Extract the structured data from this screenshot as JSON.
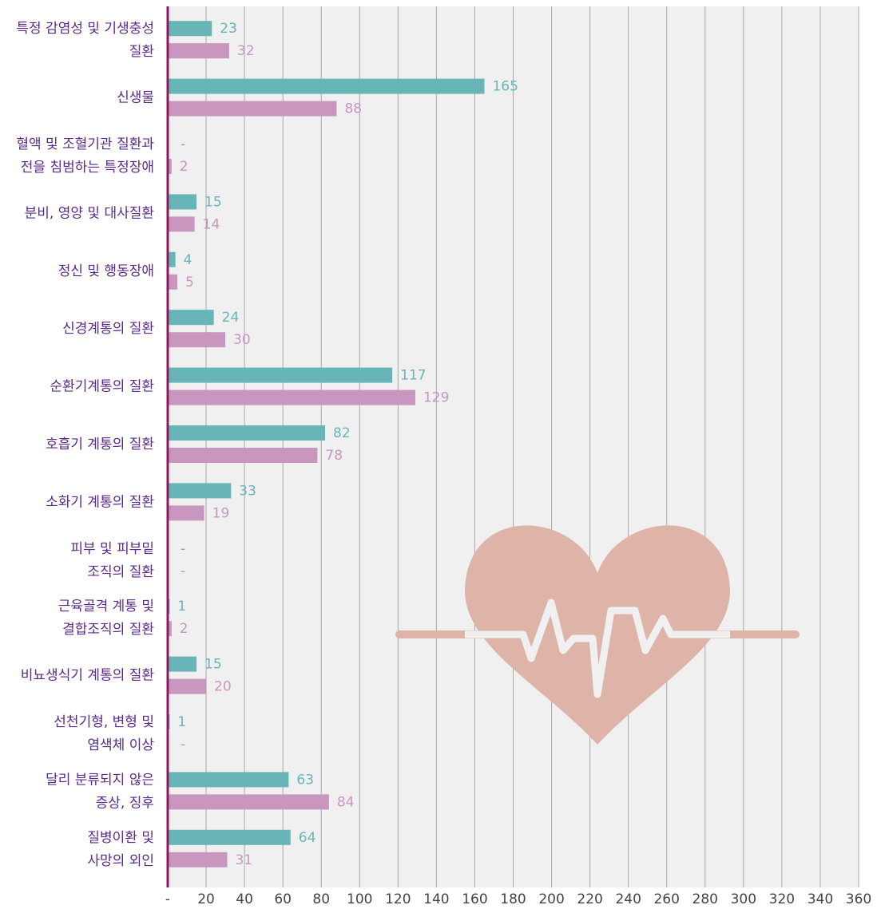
{
  "chart_data": {
    "type": "bar",
    "orientation": "horizontal",
    "categories": [
      [
        "특정 감염성 및 기생충성",
        "질환"
      ],
      [
        "신생물"
      ],
      [
        "혈액 및 조혈기관 질환과",
        "전을 침범하는 특정장애"
      ],
      [
        "분비, 영양 및 대사질환"
      ],
      [
        "정신 및 행동장애"
      ],
      [
        "신경계통의 질환"
      ],
      [
        "순환기계통의 질환"
      ],
      [
        "호흡기 계통의 질환"
      ],
      [
        "소화기 계통의 질환"
      ],
      [
        "피부 및 피부밑",
        "조직의 질환"
      ],
      [
        "근육골격 계통 및",
        "결합조직의 질환"
      ],
      [
        "비뇨생식기 계통의 질환"
      ],
      [
        "선천기형, 변형 및",
        "염색체 이상"
      ],
      [
        "달리 분류되지 않은",
        "증상, 징후"
      ],
      [
        "질병이환 및",
        "사망의 외인"
      ]
    ],
    "series": [
      {
        "color": "#67b5b7",
        "values": [
          23,
          165,
          null,
          15,
          4,
          24,
          117,
          82,
          33,
          null,
          1,
          15,
          1,
          63,
          64
        ],
        "value_labels": [
          "23",
          "165",
          "-",
          "15",
          "4",
          "24",
          "117",
          "82",
          "33",
          "-",
          "1",
          "15",
          "1",
          "63",
          "64"
        ]
      },
      {
        "color": "#c896be",
        "values": [
          32,
          88,
          2,
          14,
          5,
          30,
          129,
          78,
          19,
          null,
          2,
          20,
          null,
          84,
          31
        ],
        "value_labels": [
          "32",
          "88",
          "2",
          "14",
          "5",
          "30",
          "129",
          "78",
          "19",
          "-",
          "2",
          "20",
          "-",
          "84",
          "31"
        ]
      }
    ],
    "xlim": [
      0,
      360
    ],
    "xticks": [
      {
        "value": 0,
        "label": "-"
      },
      20,
      40,
      60,
      80,
      100,
      120,
      140,
      160,
      180,
      200,
      220,
      240,
      260,
      280,
      300,
      320,
      340,
      360
    ],
    "grid": true
  }
}
